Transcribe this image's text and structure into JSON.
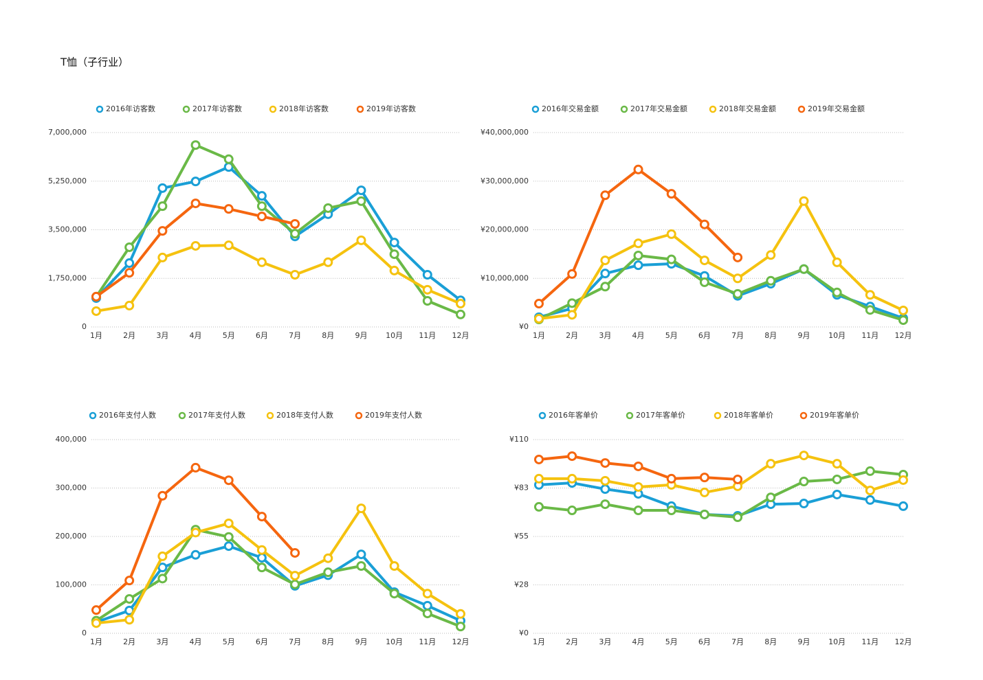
{
  "title": "T恤（子行业）",
  "chart_data": [
    {
      "type": "line",
      "grid": true,
      "legend": "top-left",
      "categories": [
        "1月",
        "2月",
        "3月",
        "4月",
        "5月",
        "6月",
        "7月",
        "8月",
        "9月",
        "10月",
        "11月",
        "12月"
      ],
      "ylim": [
        0,
        7000000
      ],
      "yticks": [
        0,
        {
          "value": 1750000,
          "label": "1,750,000"
        },
        {
          "value": 3500000,
          "label": "3,500,000"
        },
        {
          "value": 5250000,
          "label": "5,250,000"
        },
        {
          "value": 7000000,
          "label": "7,000,000"
        }
      ],
      "series": [
        {
          "name": "2016年访客数",
          "color": "#1a9fd6",
          "values": [
            1040000,
            2300000,
            5000000,
            5240000,
            5760000,
            4720000,
            3260000,
            4060000,
            4920000,
            3040000,
            1880000,
            960000
          ]
        },
        {
          "name": "2017年访客数",
          "color": "#6ab947",
          "values": [
            1090000,
            2870000,
            4350000,
            6550000,
            6040000,
            4350000,
            3360000,
            4280000,
            4530000,
            2620000,
            940000,
            450000
          ]
        },
        {
          "name": "2018年访客数",
          "color": "#f5c20f",
          "values": [
            570000,
            770000,
            2500000,
            2920000,
            2940000,
            2330000,
            1880000,
            2330000,
            3120000,
            2030000,
            1340000,
            840000
          ]
        },
        {
          "name": "2019年访客数",
          "color": "#f5660f",
          "values": [
            1090000,
            1950000,
            3460000,
            4450000,
            4250000,
            3980000,
            3710000,
            null,
            null,
            null,
            null,
            null
          ]
        }
      ]
    },
    {
      "type": "line",
      "grid": true,
      "legend": "top-left",
      "categories": [
        "1月",
        "2月",
        "3月",
        "4月",
        "5月",
        "6月",
        "7月",
        "8月",
        "9月",
        "10月",
        "11月",
        "12月"
      ],
      "ylim": [
        0,
        40000000
      ],
      "yticks": [
        {
          "value": 0,
          "label": "¥0"
        },
        {
          "value": 10000000,
          "label": "¥10,000,000"
        },
        {
          "value": 20000000,
          "label": "¥20,000,000"
        },
        {
          "value": 30000000,
          "label": "¥30,000,000"
        },
        {
          "value": 40000000,
          "label": "¥40,000,000"
        }
      ],
      "series": [
        {
          "name": "2016年交易金额",
          "color": "#1a9fd6",
          "values": [
            2000000,
            3800000,
            11000000,
            12700000,
            13000000,
            10500000,
            6400000,
            8900000,
            11900000,
            6600000,
            4200000,
            1800000
          ]
        },
        {
          "name": "2017年交易金额",
          "color": "#6ab947",
          "values": [
            1550000,
            4900000,
            8300000,
            14700000,
            13900000,
            9200000,
            6800000,
            9500000,
            11900000,
            7100000,
            3500000,
            1400000
          ]
        },
        {
          "name": "2018年交易金额",
          "color": "#f5c20f",
          "values": [
            1700000,
            2500000,
            13700000,
            17200000,
            19100000,
            13700000,
            10000000,
            14800000,
            25900000,
            13300000,
            6600000,
            3400000
          ]
        },
        {
          "name": "2019年交易金额",
          "color": "#f5660f",
          "values": [
            4800000,
            10900000,
            27100000,
            32400000,
            27400000,
            21100000,
            14300000,
            null,
            null,
            null,
            null,
            null
          ]
        }
      ]
    },
    {
      "type": "line",
      "grid": true,
      "legend": "top-left",
      "categories": [
        "1月",
        "2月",
        "3月",
        "4月",
        "5月",
        "6月",
        "7月",
        "8月",
        "9月",
        "10月",
        "11月",
        "12月"
      ],
      "ylim": [
        0,
        400000
      ],
      "yticks": [
        0,
        {
          "value": 100000,
          "label": "100,000"
        },
        {
          "value": 200000,
          "label": "200,000"
        },
        {
          "value": 300000,
          "label": "300,000"
        },
        {
          "value": 400000,
          "label": "400,000"
        }
      ],
      "series": [
        {
          "name": "2016年支付人数",
          "color": "#1a9fd6",
          "values": [
            23000,
            47000,
            136000,
            162000,
            180000,
            156000,
            98000,
            120000,
            163000,
            85000,
            57000,
            26000
          ]
        },
        {
          "name": "2017年支付人数",
          "color": "#6ab947",
          "values": [
            26000,
            71000,
            113000,
            214000,
            199000,
            136000,
            101000,
            126000,
            139000,
            82000,
            41000,
            14000
          ]
        },
        {
          "name": "2018年支付人数",
          "color": "#f5c20f",
          "values": [
            21000,
            28000,
            159000,
            208000,
            227000,
            172000,
            119000,
            155000,
            258000,
            139000,
            82000,
            40000
          ]
        },
        {
          "name": "2019年支付人数",
          "color": "#f5660f",
          "values": [
            48000,
            109000,
            284000,
            342000,
            316000,
            241000,
            166000,
            null,
            null,
            null,
            null,
            null
          ]
        }
      ]
    },
    {
      "type": "line",
      "grid": true,
      "legend": "top-left",
      "categories": [
        "1月",
        "2月",
        "3月",
        "4月",
        "5月",
        "6月",
        "7月",
        "8月",
        "9月",
        "10月",
        "11月",
        "12月"
      ],
      "ylim": [
        0,
        110
      ],
      "yticks": [
        {
          "value": 0,
          "label": "¥0"
        },
        {
          "value": 27.5,
          "label": "¥28"
        },
        {
          "value": 55,
          "label": "¥55"
        },
        {
          "value": 82.5,
          "label": "¥83"
        },
        {
          "value": 110,
          "label": "¥110"
        }
      ],
      "series": [
        {
          "name": "2016年客单价",
          "color": "#1a9fd6",
          "values": [
            84.3,
            85.4,
            81.9,
            79.2,
            72.2,
            67.5,
            66.7,
            73.3,
            73.7,
            78.8,
            75.7,
            72.2
          ]
        },
        {
          "name": "2017年客单价",
          "color": "#6ab947",
          "values": [
            71.8,
            69.8,
            73.3,
            69.8,
            69.8,
            67.5,
            65.9,
            77.2,
            86.2,
            87.4,
            92.1,
            90.1
          ]
        },
        {
          "name": "2018年客单价",
          "color": "#f5c20f",
          "values": [
            87.8,
            87.8,
            86.6,
            83.1,
            84.3,
            80.0,
            83.5,
            96.3,
            101.0,
            96.3,
            81.1,
            87.0
          ]
        },
        {
          "name": "2019年客单价",
          "color": "#f5660f",
          "values": [
            98.7,
            100.6,
            96.7,
            94.8,
            87.8,
            88.5,
            87.4,
            null,
            null,
            null,
            null,
            null
          ]
        }
      ]
    }
  ]
}
